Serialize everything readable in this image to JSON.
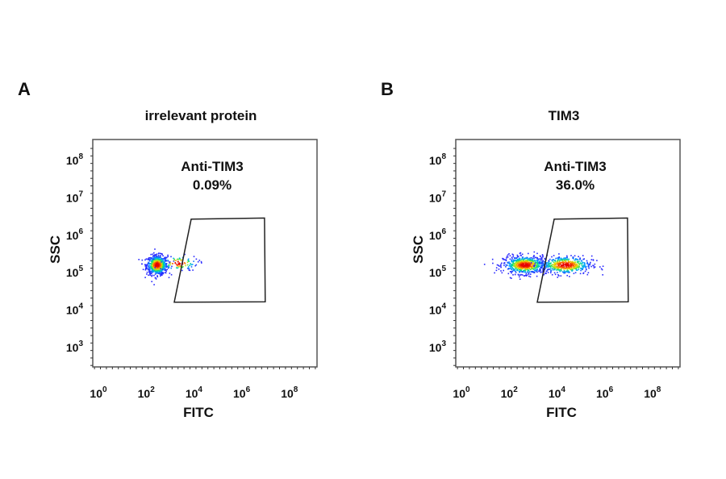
{
  "chart_data": [
    {
      "type": "scatter",
      "panel_label": "A",
      "title": "irrelevant protein",
      "xlabel": "FITC",
      "ylabel": "SSC",
      "xscale": "log",
      "yscale": "log",
      "xlim_log10": [
        -0.3,
        9.1
      ],
      "ylim_log10": [
        2.45,
        8.55
      ],
      "xticks": [
        {
          "base": "10",
          "exp": "0"
        },
        {
          "base": "10",
          "exp": "2"
        },
        {
          "base": "10",
          "exp": "4"
        },
        {
          "base": "10",
          "exp": "6"
        },
        {
          "base": "10",
          "exp": "8"
        }
      ],
      "xtick_values_log10": [
        0,
        2,
        4,
        6,
        8
      ],
      "yticks": [
        {
          "base": "10",
          "exp": "3"
        },
        {
          "base": "10",
          "exp": "4"
        },
        {
          "base": "10",
          "exp": "5"
        },
        {
          "base": "10",
          "exp": "6"
        },
        {
          "base": "10",
          "exp": "7"
        },
        {
          "base": "10",
          "exp": "8"
        }
      ],
      "ytick_values_log10": [
        3,
        4,
        5,
        6,
        7,
        8
      ],
      "gate": {
        "name": "Anti-TIM3",
        "percent": "0.09%",
        "vertices_log10": [
          [
            3.75,
            6.41
          ],
          [
            6.82,
            6.44
          ],
          [
            6.85,
            4.2
          ],
          [
            3.04,
            4.19
          ]
        ]
      },
      "clusters_log10": [
        {
          "x": 2.3,
          "y": 5.2,
          "sx": 0.22,
          "sy": 0.13,
          "count": 700
        },
        {
          "x": 3.2,
          "y": 5.25,
          "sx": 0.4,
          "sy": 0.1,
          "count": 90
        }
      ]
    },
    {
      "type": "scatter",
      "panel_label": "B",
      "title": "TIM3",
      "xlabel": "FITC",
      "ylabel": "SSC",
      "xscale": "log",
      "yscale": "log",
      "xlim_log10": [
        -0.3,
        9.1
      ],
      "ylim_log10": [
        2.45,
        8.55
      ],
      "xticks": [
        {
          "base": "10",
          "exp": "0"
        },
        {
          "base": "10",
          "exp": "2"
        },
        {
          "base": "10",
          "exp": "4"
        },
        {
          "base": "10",
          "exp": "6"
        },
        {
          "base": "10",
          "exp": "8"
        }
      ],
      "xtick_values_log10": [
        0,
        2,
        4,
        6,
        8
      ],
      "yticks": [
        {
          "base": "10",
          "exp": "3"
        },
        {
          "base": "10",
          "exp": "4"
        },
        {
          "base": "10",
          "exp": "5"
        },
        {
          "base": "10",
          "exp": "6"
        },
        {
          "base": "10",
          "exp": "7"
        },
        {
          "base": "10",
          "exp": "8"
        }
      ],
      "ytick_values_log10": [
        3,
        4,
        5,
        6,
        7,
        8
      ],
      "gate": {
        "name": "Anti-TIM3",
        "percent": "36.0%",
        "vertices_log10": [
          [
            3.75,
            6.41
          ],
          [
            6.82,
            6.44
          ],
          [
            6.85,
            4.2
          ],
          [
            3.04,
            4.19
          ]
        ]
      },
      "clusters_log10": [
        {
          "x": 2.5,
          "y": 5.2,
          "sx": 0.45,
          "sy": 0.12,
          "count": 650
        },
        {
          "x": 4.2,
          "y": 5.2,
          "sx": 0.55,
          "sy": 0.12,
          "count": 500
        }
      ]
    }
  ]
}
